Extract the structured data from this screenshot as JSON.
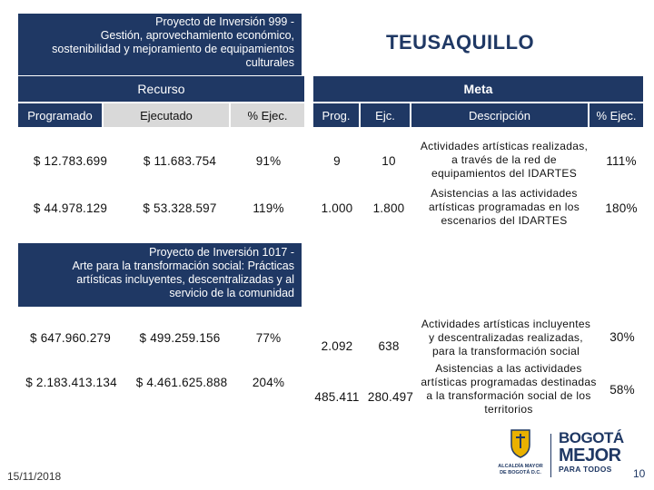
{
  "project1": {
    "lines": [
      "Proyecto de Inversión 999 -",
      "Gestión, aprovechamiento económico,",
      "sostenibilidad y mejoramiento de equipamientos",
      "culturales"
    ]
  },
  "locality_title": "TEUSAQUILLO",
  "recurso_label": "Recurso",
  "meta_label": "Meta",
  "headers": {
    "programado": "Programado",
    "ejecutado": "Ejecutado",
    "pct_ejec": "% Ejec.",
    "prog": "Prog.",
    "ejc": "Ejc.",
    "descripcion": "Descripción",
    "pct_ejec2": "% Ejec."
  },
  "rows_p1": [
    {
      "programado": "$ 12.783.699",
      "ejecutado": "$ 11.683.754",
      "pct": "91%",
      "prog": "9",
      "ejc": "10",
      "desc": [
        "Actividades artísticas realizadas,",
        "a través de la red de",
        "equipamientos del IDARTES"
      ],
      "pct_meta": "111%"
    },
    {
      "programado": "$ 44.978.129",
      "ejecutado": "$ 53.328.597",
      "pct": "119%",
      "prog": "1.000",
      "ejc": "1.800",
      "desc": [
        "Asistencias a las actividades",
        "artísticas programadas en los",
        "escenarios del IDARTES"
      ],
      "pct_meta": "180%"
    }
  ],
  "project2": {
    "lines": [
      "Proyecto de Inversión 1017 -",
      "Arte para la transformación social: Prácticas",
      "artísticas incluyentes, descentralizadas y al",
      "servicio de la comunidad"
    ]
  },
  "rows_p2": [
    {
      "programado": "$ 647.960.279",
      "ejecutado": "$ 499.259.156",
      "pct": "77%",
      "prog": "2.092",
      "ejc": "638",
      "desc": [
        "Actividades artísticas incluyentes",
        "y descentralizadas realizadas,",
        "para la transformación social"
      ],
      "pct_meta": "30%"
    },
    {
      "programado": "$ 2.183.413.134",
      "ejecutado": "$ 4.461.625.888",
      "pct": "204%",
      "prog": "485.411",
      "ejc": "280.497",
      "desc": [
        "Asistencias a las actividades",
        "artísticas programadas destinadas",
        "a la transformación social de los",
        "territorios"
      ],
      "pct_meta": "58%"
    }
  ],
  "footer": {
    "date": "15/11/2018",
    "alcaldia_line1": "ALCALDÍA MAYOR",
    "alcaldia_line2": "DE BOGOTÁ D.C.",
    "brand_line1": "BOGOTÁ",
    "brand_line2": "MEJOR",
    "brand_line3": "PARA TODOS",
    "page_number": "10"
  },
  "colors": {
    "navy": "#1f3864",
    "gray": "#d9d9d9",
    "footer_blue": "#1f3864"
  }
}
